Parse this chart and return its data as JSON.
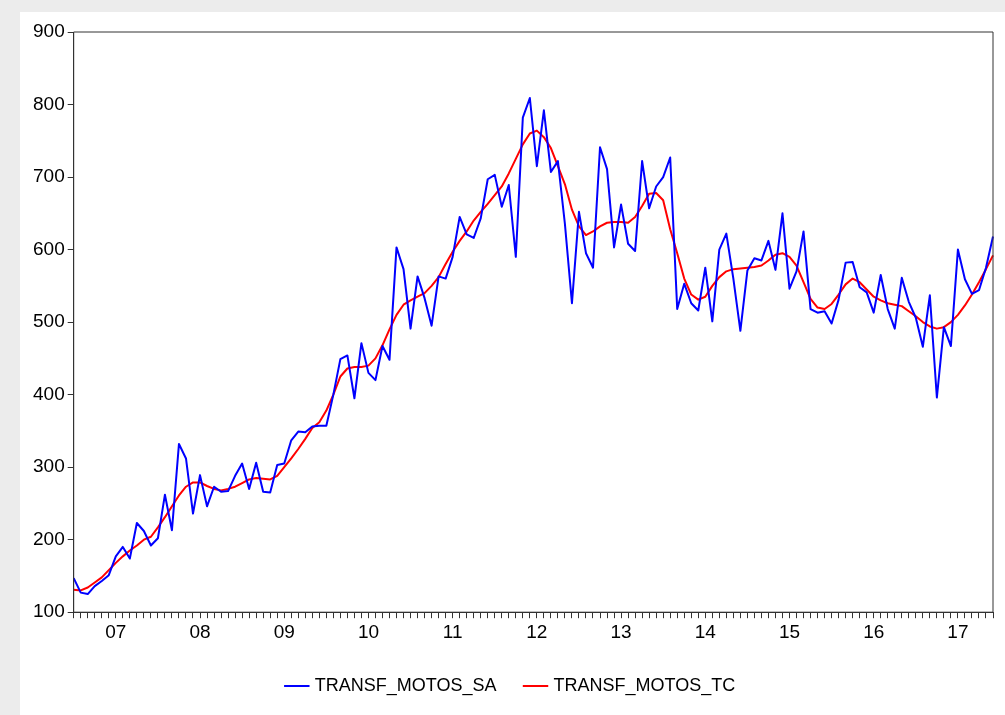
{
  "chart_data": {
    "type": "line",
    "categories": [
      null,
      null,
      null,
      null,
      null,
      null,
      "07",
      null,
      null,
      null,
      null,
      null,
      null,
      null,
      null,
      null,
      null,
      null,
      "08",
      null,
      null,
      null,
      null,
      null,
      null,
      null,
      null,
      null,
      null,
      null,
      "09",
      null,
      null,
      null,
      null,
      null,
      null,
      null,
      null,
      null,
      null,
      null,
      "10",
      null,
      null,
      null,
      null,
      null,
      null,
      null,
      null,
      null,
      null,
      null,
      "11",
      null,
      null,
      null,
      null,
      null,
      null,
      null,
      null,
      null,
      null,
      null,
      "12",
      null,
      null,
      null,
      null,
      null,
      null,
      null,
      null,
      null,
      null,
      null,
      "13",
      null,
      null,
      null,
      null,
      null,
      null,
      null,
      null,
      null,
      null,
      null,
      "14",
      null,
      null,
      null,
      null,
      null,
      null,
      null,
      null,
      null,
      null,
      null,
      "15",
      null,
      null,
      null,
      null,
      null,
      null,
      null,
      null,
      null,
      null,
      null,
      "16",
      null,
      null,
      null,
      null,
      null,
      null,
      null,
      null,
      null,
      null,
      null,
      "17",
      null,
      null,
      null,
      null,
      null
    ],
    "series": [
      {
        "name": "TRANSF_MOTOS_SA",
        "color": "#0000ff",
        "values": [
          147,
          127,
          125,
          136,
          143,
          151,
          177,
          190,
          174,
          223,
          212,
          192,
          202,
          262,
          213,
          332,
          312,
          236,
          289,
          246,
          273,
          266,
          267,
          288,
          305,
          270,
          306,
          266,
          265,
          303,
          305,
          337,
          349,
          348,
          356,
          357,
          357,
          400,
          449,
          454,
          395,
          471,
          430,
          420,
          467,
          448,
          603,
          573,
          491,
          563,
          533,
          495,
          563,
          560,
          590,
          645,
          621,
          616,
          643,
          697,
          703,
          659,
          689,
          590,
          782,
          809,
          715,
          792,
          707,
          722,
          635,
          526,
          652,
          595,
          575,
          741,
          711,
          603,
          662,
          608,
          598,
          722,
          657,
          687,
          700,
          727,
          518,
          553,
          526,
          516,
          575,
          501,
          600,
          622,
          560,
          488,
          571,
          588,
          585,
          612,
          572,
          650,
          546,
          570,
          625,
          518,
          513,
          515,
          498,
          531,
          582,
          583,
          548,
          541,
          513,
          565,
          518,
          491,
          561,
          528,
          506,
          466,
          537,
          396,
          493,
          467,
          600,
          559,
          539,
          544,
          575,
          618
        ]
      },
      {
        "name": "TRANSF_MOTOS_TC",
        "color": "#ff0000",
        "values": [
          131,
          130,
          134,
          141,
          148,
          158,
          168,
          177,
          185,
          192,
          200,
          204,
          217,
          231,
          246,
          261,
          273,
          279,
          279,
          274,
          270,
          268,
          270,
          273,
          278,
          283,
          285,
          284,
          283,
          288,
          300,
          312,
          325,
          339,
          354,
          362,
          378,
          400,
          425,
          436,
          438,
          438,
          440,
          450,
          468,
          490,
          510,
          524,
          530,
          535,
          540,
          550,
          562,
          580,
          597,
          612,
          625,
          640,
          652,
          663,
          675,
          687,
          705,
          725,
          745,
          760,
          764,
          755,
          740,
          715,
          690,
          655,
          632,
          620,
          625,
          632,
          637,
          638,
          638,
          637,
          645,
          660,
          677,
          678,
          668,
          628,
          595,
          560,
          538,
          531,
          535,
          550,
          562,
          570,
          573,
          574,
          575,
          576,
          578,
          585,
          593,
          595,
          590,
          578,
          555,
          532,
          520,
          518,
          525,
          538,
          552,
          560,
          555,
          545,
          535,
          530,
          526,
          524,
          522,
          515,
          508,
          500,
          494,
          491,
          493,
          500,
          510,
          523,
          538,
          555,
          573,
          592
        ]
      }
    ],
    "ylim": [
      100,
      900
    ],
    "yticks": [
      100,
      200,
      300,
      400,
      500,
      600,
      700,
      800,
      900
    ],
    "grid": false,
    "legend": "bottom"
  }
}
